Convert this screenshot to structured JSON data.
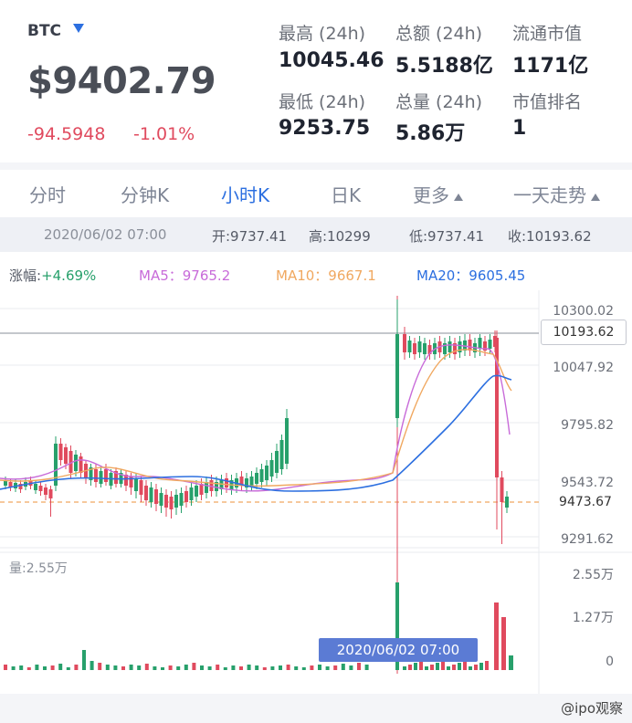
{
  "header": {
    "symbol": "BTC",
    "price": "$9402.79",
    "change_abs": "-94.5948",
    "change_pct": "-1.01%"
  },
  "stats": [
    {
      "label": "最高 (24h)",
      "value": "10045.46"
    },
    {
      "label": "总额 (24h)",
      "value": "5.5188亿"
    },
    {
      "label": "流通市值",
      "value": "1171亿"
    },
    {
      "label": "最低 (24h)",
      "value": "9253.75"
    },
    {
      "label": "总量 (24h)",
      "value": "5.86万"
    },
    {
      "label": "市值排名",
      "value": "1"
    }
  ],
  "tabs": [
    "分时",
    "分钟K",
    "小时K",
    "日K",
    "更多",
    "一天走势"
  ],
  "active_tab": "小时K",
  "info_bar": {
    "date": "2020/06/02 07:00",
    "open": "开:9737.41",
    "high": "高:10299",
    "low": "低:9737.41",
    "close": "收:10193.62"
  },
  "ma": {
    "change": "涨幅:+4.69%",
    "ma5": "MA5：9765.2",
    "ma10": "MA10：9667.1",
    "ma20": "MA20：9605.45"
  },
  "axis": {
    "ticks": [
      "10300.02",
      "10047.92",
      "9795.82",
      "9543.72",
      "9291.62"
    ],
    "current_high_tag": "10193.62",
    "current_price_tag": "9473.67",
    "volume_ticks": [
      "2.55万",
      "1.27万",
      "0"
    ],
    "volume_label": "量:2.55万"
  },
  "tooltip": "2020/06/02 07:00",
  "watermark": "@ipo观察",
  "colors": {
    "up": "#27a06b",
    "down": "#e04a5e",
    "ma5": "#c86bd9",
    "ma10": "#f0a860",
    "ma20": "#2c6fe0",
    "accent": "#2c6fe0"
  }
}
